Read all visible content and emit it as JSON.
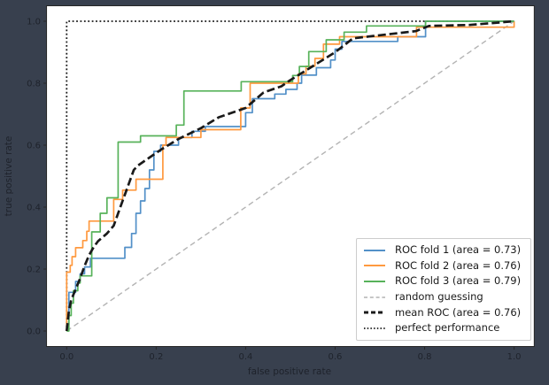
{
  "figure": {
    "background": "#38404e",
    "plot_background": "#ffffff",
    "spine_color": "#262626",
    "text_color": "#1e222b"
  },
  "chart_data": {
    "type": "line",
    "subtype": "roc-step-curves",
    "title": "",
    "xlabel": "false positive rate",
    "ylabel": "true positive rate",
    "xlim": [
      -0.045,
      1.045
    ],
    "ylim": [
      -0.05,
      1.05
    ],
    "xticks": [
      0.0,
      0.2,
      0.4,
      0.6,
      0.8,
      1.0
    ],
    "yticks": [
      0.0,
      0.2,
      0.4,
      0.6,
      0.8,
      1.0
    ],
    "grid": false,
    "legend_position": "lower right",
    "series": [
      {
        "name": "roc-fold-1",
        "label": "ROC fold 1 (area = 0.73)",
        "auc": 0.73,
        "color": "#5290c8",
        "style": "solid",
        "role": "fold",
        "points": [
          [
            0,
            0
          ],
          [
            0,
            0.02
          ],
          [
            0.005,
            0.02
          ],
          [
            0.005,
            0.125
          ],
          [
            0.02,
            0.125
          ],
          [
            0.02,
            0.16
          ],
          [
            0.03,
            0.16
          ],
          [
            0.03,
            0.185
          ],
          [
            0.04,
            0.185
          ],
          [
            0.04,
            0.207
          ],
          [
            0.053,
            0.207
          ],
          [
            0.053,
            0.235
          ],
          [
            0.13,
            0.235
          ],
          [
            0.13,
            0.27
          ],
          [
            0.145,
            0.27
          ],
          [
            0.145,
            0.315
          ],
          [
            0.155,
            0.315
          ],
          [
            0.155,
            0.38
          ],
          [
            0.165,
            0.38
          ],
          [
            0.165,
            0.42
          ],
          [
            0.175,
            0.42
          ],
          [
            0.175,
            0.46
          ],
          [
            0.185,
            0.46
          ],
          [
            0.185,
            0.52
          ],
          [
            0.195,
            0.52
          ],
          [
            0.195,
            0.58
          ],
          [
            0.21,
            0.58
          ],
          [
            0.21,
            0.6
          ],
          [
            0.25,
            0.6
          ],
          [
            0.25,
            0.625
          ],
          [
            0.28,
            0.625
          ],
          [
            0.28,
            0.645
          ],
          [
            0.31,
            0.645
          ],
          [
            0.31,
            0.66
          ],
          [
            0.4,
            0.66
          ],
          [
            0.4,
            0.705
          ],
          [
            0.415,
            0.705
          ],
          [
            0.415,
            0.75
          ],
          [
            0.465,
            0.75
          ],
          [
            0.465,
            0.765
          ],
          [
            0.49,
            0.765
          ],
          [
            0.49,
            0.78
          ],
          [
            0.515,
            0.78
          ],
          [
            0.515,
            0.8
          ],
          [
            0.525,
            0.8
          ],
          [
            0.525,
            0.826
          ],
          [
            0.558,
            0.826
          ],
          [
            0.558,
            0.85
          ],
          [
            0.59,
            0.85
          ],
          [
            0.59,
            0.875
          ],
          [
            0.6,
            0.875
          ],
          [
            0.6,
            0.91
          ],
          [
            0.615,
            0.91
          ],
          [
            0.615,
            0.935
          ],
          [
            0.74,
            0.935
          ],
          [
            0.74,
            0.95
          ],
          [
            0.802,
            0.95
          ],
          [
            0.802,
            1
          ],
          [
            1,
            1
          ]
        ]
      },
      {
        "name": "roc-fold-2",
        "label": "ROC fold 2 (area = 0.76)",
        "auc": 0.76,
        "color": "#ff993f",
        "style": "solid",
        "role": "fold",
        "points": [
          [
            0,
            0
          ],
          [
            0,
            0.19
          ],
          [
            0.008,
            0.19
          ],
          [
            0.008,
            0.212
          ],
          [
            0.012,
            0.212
          ],
          [
            0.012,
            0.24
          ],
          [
            0.02,
            0.24
          ],
          [
            0.02,
            0.269
          ],
          [
            0.036,
            0.269
          ],
          [
            0.036,
            0.292
          ],
          [
            0.045,
            0.292
          ],
          [
            0.045,
            0.322
          ],
          [
            0.05,
            0.322
          ],
          [
            0.05,
            0.355
          ],
          [
            0.105,
            0.355
          ],
          [
            0.105,
            0.425
          ],
          [
            0.125,
            0.425
          ],
          [
            0.125,
            0.455
          ],
          [
            0.155,
            0.455
          ],
          [
            0.155,
            0.49
          ],
          [
            0.215,
            0.49
          ],
          [
            0.215,
            0.6
          ],
          [
            0.222,
            0.6
          ],
          [
            0.222,
            0.625
          ],
          [
            0.3,
            0.625
          ],
          [
            0.3,
            0.65
          ],
          [
            0.389,
            0.65
          ],
          [
            0.389,
            0.72
          ],
          [
            0.41,
            0.72
          ],
          [
            0.41,
            0.8
          ],
          [
            0.518,
            0.8
          ],
          [
            0.518,
            0.83
          ],
          [
            0.535,
            0.83
          ],
          [
            0.535,
            0.855
          ],
          [
            0.555,
            0.855
          ],
          [
            0.555,
            0.88
          ],
          [
            0.574,
            0.88
          ],
          [
            0.574,
            0.926
          ],
          [
            0.61,
            0.926
          ],
          [
            0.61,
            0.95
          ],
          [
            0.782,
            0.95
          ],
          [
            0.782,
            0.981
          ],
          [
            1,
            0.981
          ],
          [
            1,
            1
          ]
        ]
      },
      {
        "name": "roc-fold-3",
        "label": "ROC fold 3 (area = 0.79)",
        "auc": 0.79,
        "color": "#57b25a",
        "style": "solid",
        "role": "fold",
        "points": [
          [
            0,
            0
          ],
          [
            0.005,
            0
          ],
          [
            0.005,
            0.05
          ],
          [
            0.01,
            0.05
          ],
          [
            0.01,
            0.09
          ],
          [
            0.015,
            0.09
          ],
          [
            0.015,
            0.13
          ],
          [
            0.025,
            0.13
          ],
          [
            0.025,
            0.155
          ],
          [
            0.03,
            0.155
          ],
          [
            0.03,
            0.178
          ],
          [
            0.056,
            0.178
          ],
          [
            0.056,
            0.32
          ],
          [
            0.075,
            0.32
          ],
          [
            0.075,
            0.38
          ],
          [
            0.09,
            0.38
          ],
          [
            0.09,
            0.43
          ],
          [
            0.115,
            0.43
          ],
          [
            0.115,
            0.61
          ],
          [
            0.165,
            0.61
          ],
          [
            0.165,
            0.63
          ],
          [
            0.245,
            0.63
          ],
          [
            0.245,
            0.665
          ],
          [
            0.262,
            0.665
          ],
          [
            0.262,
            0.775
          ],
          [
            0.39,
            0.775
          ],
          [
            0.39,
            0.805
          ],
          [
            0.505,
            0.805
          ],
          [
            0.505,
            0.825
          ],
          [
            0.52,
            0.825
          ],
          [
            0.52,
            0.854
          ],
          [
            0.541,
            0.854
          ],
          [
            0.541,
            0.902
          ],
          [
            0.58,
            0.902
          ],
          [
            0.58,
            0.94
          ],
          [
            0.62,
            0.94
          ],
          [
            0.62,
            0.965
          ],
          [
            0.67,
            0.965
          ],
          [
            0.67,
            0.985
          ],
          [
            0.802,
            0.985
          ],
          [
            0.802,
            1
          ],
          [
            1,
            1
          ]
        ]
      },
      {
        "name": "random-guessing",
        "label": "random guessing",
        "color": "#b3b3b3",
        "style": "dashed",
        "role": "random",
        "points": [
          [
            0,
            0
          ],
          [
            1,
            1
          ]
        ]
      },
      {
        "name": "mean-roc",
        "label": "mean ROC (area = 0.76)",
        "auc": 0.76,
        "color": "#1a1a1a",
        "style": "dashed",
        "role": "mean",
        "points": [
          [
            0,
            0
          ],
          [
            0.005,
            0.065
          ],
          [
            0.01,
            0.1
          ],
          [
            0.02,
            0.135
          ],
          [
            0.03,
            0.17
          ],
          [
            0.04,
            0.21
          ],
          [
            0.05,
            0.245
          ],
          [
            0.06,
            0.27
          ],
          [
            0.07,
            0.29
          ],
          [
            0.09,
            0.315
          ],
          [
            0.105,
            0.34
          ],
          [
            0.12,
            0.4
          ],
          [
            0.13,
            0.44
          ],
          [
            0.15,
            0.52
          ],
          [
            0.16,
            0.535
          ],
          [
            0.18,
            0.555
          ],
          [
            0.21,
            0.585
          ],
          [
            0.25,
            0.62
          ],
          [
            0.3,
            0.655
          ],
          [
            0.34,
            0.69
          ],
          [
            0.4,
            0.72
          ],
          [
            0.44,
            0.77
          ],
          [
            0.48,
            0.79
          ],
          [
            0.5,
            0.81
          ],
          [
            0.55,
            0.855
          ],
          [
            0.6,
            0.9
          ],
          [
            0.64,
            0.945
          ],
          [
            0.7,
            0.955
          ],
          [
            0.78,
            0.968
          ],
          [
            0.81,
            0.985
          ],
          [
            0.9,
            0.988
          ],
          [
            1,
            1
          ]
        ]
      },
      {
        "name": "perfect-performance",
        "label": "perfect performance",
        "color": "#1a1a1a",
        "style": "dotted",
        "role": "perfect",
        "points": [
          [
            0,
            0
          ],
          [
            0,
            1
          ],
          [
            1,
            1
          ]
        ]
      }
    ]
  }
}
